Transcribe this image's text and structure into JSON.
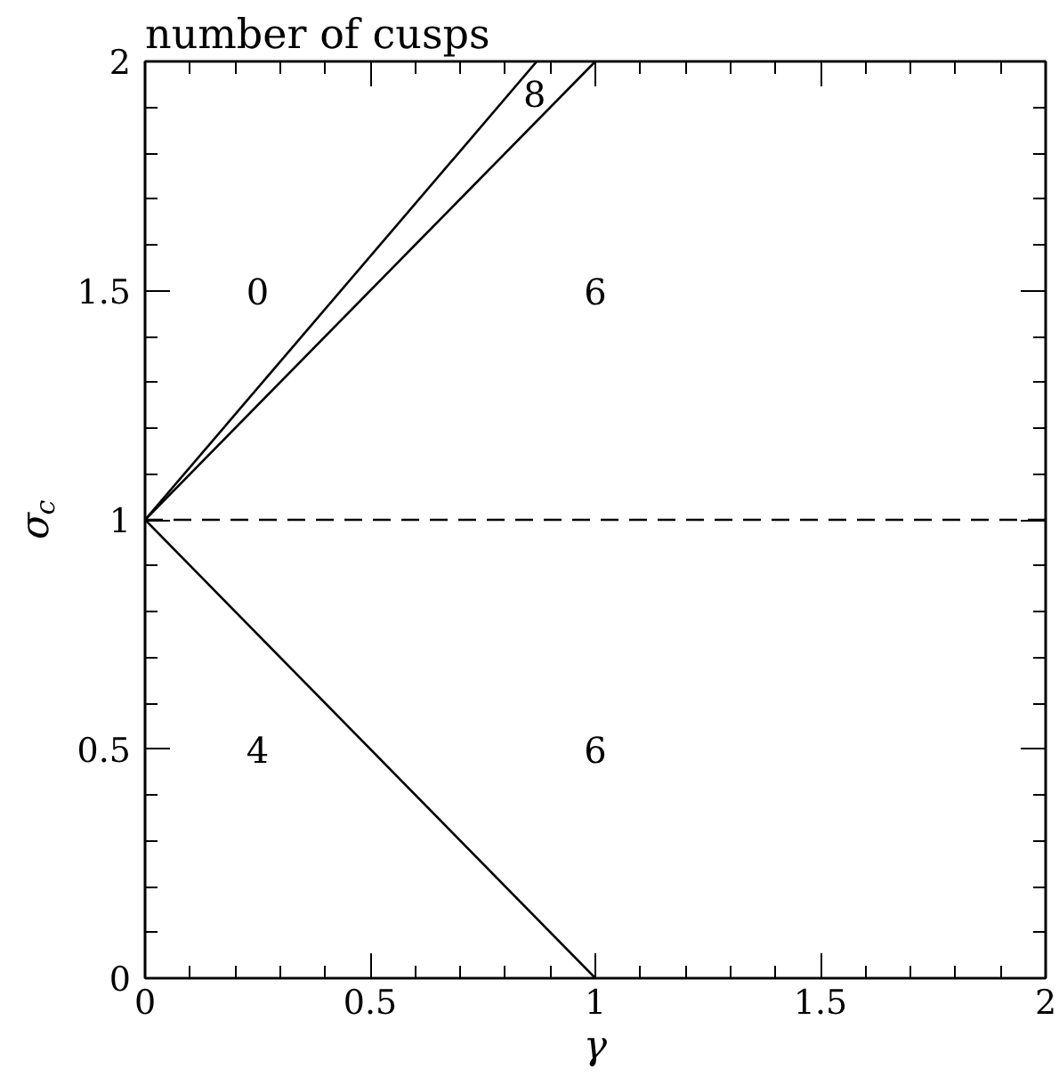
{
  "chart_data": {
    "type": "line",
    "title": "number of cusps",
    "xlabel": "γ",
    "ylabel": "σ$_{c}$",
    "series": [
      {
        "x": [
          0,
          0.87
        ],
        "values": [
          1,
          2
        ],
        "color": "#000000"
      },
      {
        "x": [
          0,
          1
        ],
        "values": [
          1,
          2
        ],
        "color": "#000000"
      },
      {
        "x": [
          0,
          1
        ],
        "values": [
          1,
          0
        ],
        "color": "#000000"
      }
    ],
    "xlim": [
      0,
      2
    ],
    "ylim": [
      0,
      2
    ],
    "xticks": [
      0,
      0.5,
      1,
      1.5,
      2
    ],
    "yticks": [
      0,
      0.5,
      1,
      1.5,
      2
    ],
    "ref_lines": [
      {
        "axis": "y",
        "value": 1,
        "color": "#000000",
        "line_style": "dashed"
      }
    ],
    "annotations": [
      "0",
      "8",
      "6",
      "4",
      "6"
    ],
    "grid": false
  }
}
